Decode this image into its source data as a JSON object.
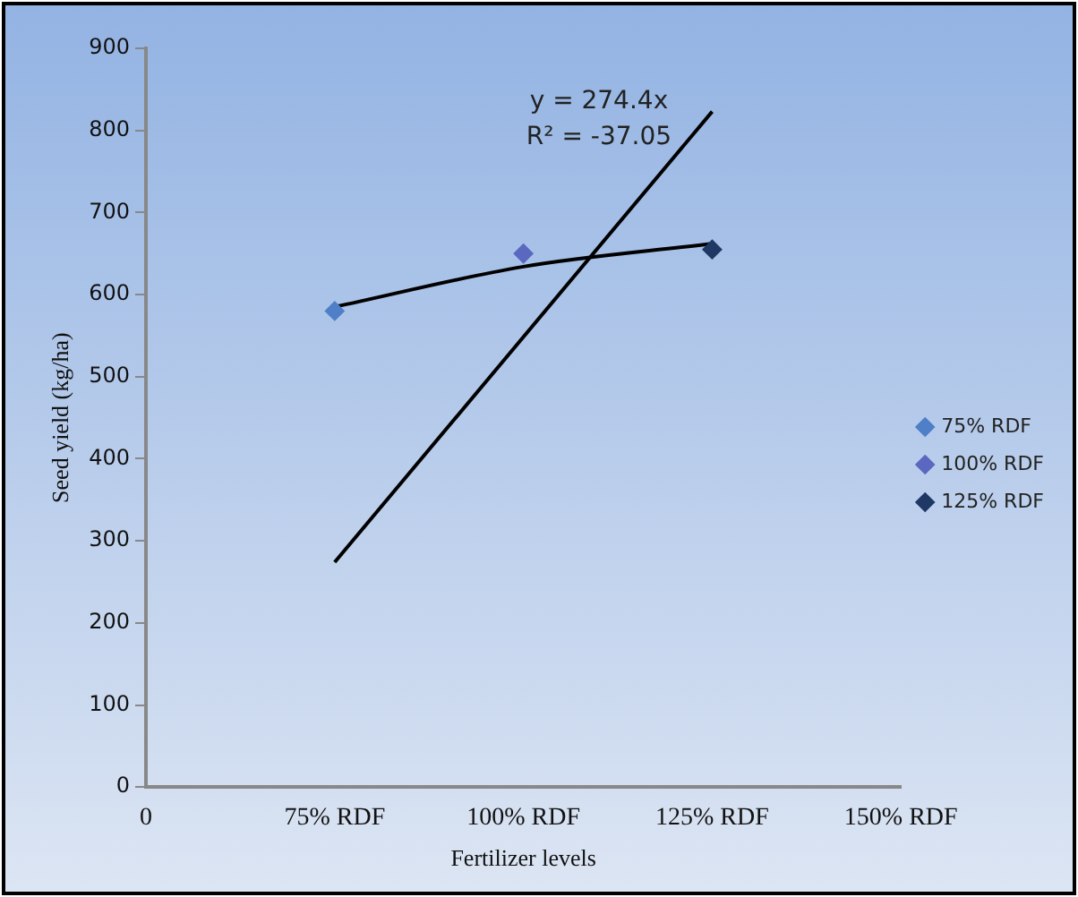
{
  "chart_data": {
    "type": "scatter",
    "xlabel": "Fertilizer levels",
    "ylabel": "Seed yield (kg/ha)",
    "categories": [
      "0",
      "75% RDF",
      "100% RDF",
      "125% RDF",
      "150% RDF"
    ],
    "ylim": [
      0,
      900
    ],
    "yticks": [
      0,
      100,
      200,
      300,
      400,
      500,
      600,
      700,
      800,
      900
    ],
    "grid": false,
    "legend": "right",
    "marker": "diamond",
    "series": [
      {
        "name": "75% RDF",
        "color": "#4f7fc6",
        "values": [
          null,
          580,
          null,
          null,
          null
        ]
      },
      {
        "name": "100% RDF",
        "color": "#5a68c0",
        "values": [
          null,
          null,
          650,
          null,
          null
        ]
      },
      {
        "name": "125% RDF",
        "color": "#1f3864",
        "values": [
          null,
          null,
          null,
          655,
          null
        ]
      },
      {
        "type": "line",
        "color": "#000000",
        "marker": "none",
        "values": [
          null,
          274,
          null,
          823,
          null
        ]
      },
      {
        "type": "line",
        "color": "#000000",
        "marker": "none",
        "values": [
          null,
          585,
          634,
          662,
          null
        ]
      }
    ],
    "annotations": [
      "y = 274.4x",
      "R² = -37.05"
    ]
  }
}
